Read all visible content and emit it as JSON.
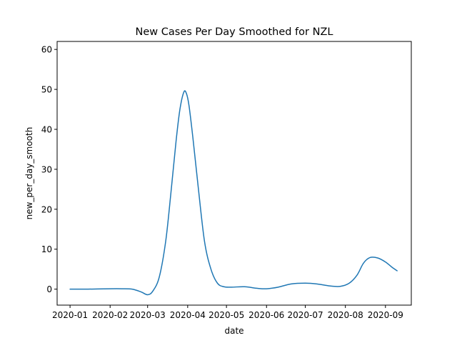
{
  "chart_data": {
    "type": "line",
    "title": "New Cases Per Day Smoothed for NZL",
    "xlabel": "date",
    "ylabel": "new_per_day_smooth",
    "xlim": [
      "2019-12-22",
      "2020-09-21"
    ],
    "ylim": [
      -4,
      62
    ],
    "grid": false,
    "x_ticks": [
      "2020-01-01",
      "2020-02-01",
      "2020-03-01",
      "2020-04-01",
      "2020-05-01",
      "2020-06-01",
      "2020-07-01",
      "2020-08-01",
      "2020-09-01"
    ],
    "x_tick_labels": [
      "2020-01",
      "2020-02",
      "2020-03",
      "2020-04",
      "2020-05",
      "2020-06",
      "2020-07",
      "2020-08",
      "2020-09"
    ],
    "y_ticks": [
      0,
      10,
      20,
      30,
      40,
      50,
      60
    ],
    "y_tick_labels": [
      "0",
      "10",
      "20",
      "30",
      "40",
      "50",
      "60"
    ],
    "color": "#1f77b4",
    "series": [
      {
        "x": [
          "2020-01-01",
          "2020-01-15",
          "2020-02-01",
          "2020-02-10",
          "2020-02-18",
          "2020-02-25",
          "2020-03-01",
          "2020-03-05",
          "2020-03-10",
          "2020-03-15",
          "2020-03-19",
          "2020-03-23",
          "2020-03-26",
          "2020-03-29",
          "2020-03-31",
          "2020-04-02",
          "2020-04-05",
          "2020-04-09",
          "2020-04-14",
          "2020-04-19",
          "2020-04-24",
          "2020-04-29",
          "2020-05-05",
          "2020-05-15",
          "2020-05-25",
          "2020-06-01",
          "2020-06-10",
          "2020-06-20",
          "2020-07-01",
          "2020-07-10",
          "2020-07-20",
          "2020-07-28",
          "2020-08-04",
          "2020-08-10",
          "2020-08-15",
          "2020-08-20",
          "2020-08-26",
          "2020-09-01",
          "2020-09-06",
          "2020-09-10"
        ],
        "y": [
          0,
          0,
          0.1,
          0.1,
          0,
          -0.7,
          -1.4,
          -0.5,
          3,
          12,
          24,
          37,
          45,
          49.3,
          49,
          46,
          38,
          26,
          12,
          5,
          1.5,
          0.6,
          0.5,
          0.6,
          0.2,
          0.1,
          0.5,
          1.3,
          1.5,
          1.3,
          0.8,
          0.7,
          1.5,
          3.5,
          6.5,
          7.9,
          7.8,
          6.8,
          5.5,
          4.6
        ]
      }
    ]
  }
}
